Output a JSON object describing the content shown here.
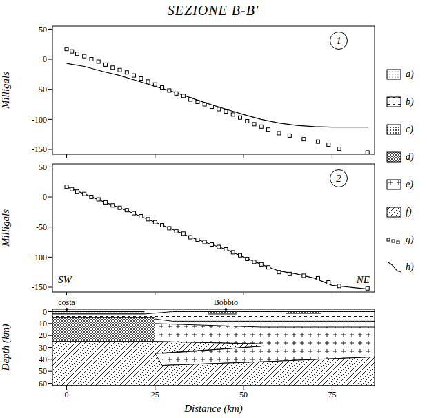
{
  "title": "SEZIONE B-B'",
  "chart_data": [
    {
      "type": "line",
      "label": "1",
      "xlim": [
        -4,
        87
      ],
      "xticks": [
        0,
        25,
        50,
        75
      ],
      "tick_labels": "y",
      "ylabel": "Milligals",
      "ylim": [
        -158,
        55
      ],
      "yticks": [
        50,
        0,
        -50,
        -100,
        -150
      ],
      "color": "#000000",
      "series": [
        {
          "name": "g)",
          "type": "scatter",
          "marker": "square",
          "color": "#000000",
          "x": [
            0,
            1.5,
            3,
            5,
            7,
            9,
            11,
            13,
            15,
            17,
            19,
            21,
            23,
            25,
            27,
            29,
            31,
            33,
            35,
            37,
            39,
            41,
            43,
            45,
            47,
            49,
            51,
            53,
            55,
            57,
            60,
            63,
            67,
            71,
            74,
            77,
            85
          ],
          "values": [
            17,
            13,
            9,
            5,
            0,
            -4,
            -9,
            -14,
            -18,
            -22,
            -27,
            -32,
            -37,
            -42,
            -47,
            -52,
            -57,
            -61,
            -67,
            -71,
            -75,
            -79,
            -83,
            -87,
            -92,
            -97,
            -103,
            -108,
            -112,
            -117,
            -123,
            -127,
            -133,
            -137,
            -142,
            -149,
            -155
          ]
        },
        {
          "name": "h)",
          "type": "line",
          "line_style": "solid",
          "color": "#000000",
          "x": [
            0,
            5,
            10,
            15,
            20,
            25,
            30,
            35,
            40,
            45,
            50,
            55,
            60,
            65,
            70,
            75,
            80,
            85
          ],
          "values": [
            -7,
            -12,
            -20,
            -27,
            -36,
            -45,
            -54,
            -64,
            -74,
            -83,
            -92,
            -100,
            -106,
            -110,
            -112,
            -113,
            -113,
            -113
          ]
        }
      ]
    },
    {
      "type": "line",
      "label": "2",
      "xlim": [
        -4,
        87
      ],
      "xticks": [
        0,
        25,
        50,
        75
      ],
      "tick_labels": "y",
      "ylabel": "Milligals",
      "ylim": [
        -158,
        55
      ],
      "yticks": [
        50,
        0,
        -50,
        -100,
        -150
      ],
      "color": "#000000",
      "annotations": [
        {
          "text": "SW"
        },
        {
          "text": "NE"
        }
      ],
      "series": [
        {
          "name": "g)",
          "type": "scatter",
          "marker": "square",
          "color": "#000000",
          "x": [
            0,
            1.5,
            3,
            5,
            7,
            9,
            11,
            13,
            15,
            17,
            19,
            21,
            23,
            25,
            27,
            29,
            31,
            33,
            35,
            37,
            39,
            41,
            43,
            45,
            47,
            49,
            51,
            53,
            55,
            57,
            60,
            63,
            67,
            71,
            74,
            77,
            85
          ],
          "values": [
            17,
            13,
            9,
            5,
            0,
            -4,
            -9,
            -14,
            -18,
            -22,
            -27,
            -32,
            -37,
            -42,
            -47,
            -52,
            -57,
            -61,
            -67,
            -71,
            -75,
            -79,
            -83,
            -87,
            -92,
            -97,
            -103,
            -108,
            -112,
            -117,
            -125,
            -128,
            -131,
            -135,
            -142,
            -148,
            -152
          ]
        },
        {
          "name": "h)",
          "type": "line",
          "line_style": "solid",
          "color": "#000000",
          "x": [
            0,
            5,
            10,
            15,
            20,
            25,
            30,
            35,
            40,
            45,
            50,
            55,
            60,
            65,
            70,
            75,
            80,
            85
          ],
          "values": [
            17,
            5,
            -7,
            -18,
            -30,
            -42,
            -54,
            -67,
            -77,
            -87,
            -100,
            -112,
            -123,
            -128,
            -135,
            -147,
            -150,
            -153
          ]
        }
      ]
    },
    {
      "type": "area",
      "xlabel": "Distance (km)",
      "ylabel": "Depth (km)",
      "xlim": [
        -4,
        87
      ],
      "xticks": [
        0,
        25,
        50,
        75
      ],
      "ylim": [
        -2,
        62
      ],
      "yticks": [
        0,
        10,
        20,
        30,
        40,
        50,
        60
      ],
      "color": "#000000",
      "annotations": [
        {
          "text": "costa",
          "x": 0
        },
        {
          "text": "Bobbio",
          "x": 45
        }
      ],
      "series": [
        {
          "name": "a)",
          "parts": [
            {
              "x": [
                -4,
                22
              ],
              "top": [
                0,
                0
              ],
              "bottom": [
                2,
                2
              ]
            }
          ]
        },
        {
          "name": "b)",
          "parts": [
            {
              "x": [
                -4,
                22,
                30,
                87
              ],
              "top": [
                2,
                2,
                0,
                0
              ],
              "bottom": [
                5,
                5,
                8,
                8
              ]
            }
          ]
        },
        {
          "name": "c)",
          "parts": [
            {
              "x": [
                40,
                48
              ],
              "top": [
                0,
                0
              ],
              "bottom": [
                2,
                2
              ]
            },
            {
              "x": [
                62,
                72
              ],
              "top": [
                0,
                0
              ],
              "bottom": [
                1.5,
                1.5
              ]
            }
          ]
        },
        {
          "name": "d)",
          "parts": [
            {
              "x": [
                -4,
                25
              ],
              "top": [
                5,
                5
              ],
              "bottom": [
                25,
                25
              ]
            }
          ]
        },
        {
          "name": "e)",
          "parts": [
            {
              "x": [
                25,
                55
              ],
              "top": [
                10,
                13
              ],
              "bottom": [
                25,
                27
              ]
            },
            {
              "x": [
                55,
                87
              ],
              "top": [
                13,
                13
              ],
              "bottom": [
                42,
                38
              ]
            },
            {
              "x": [
                27,
                55
              ],
              "top": [
                35,
                29
              ],
              "bottom": [
                45,
                42
              ]
            }
          ]
        },
        {
          "name": "f)",
          "parts": [
            {
              "x": [
                -4,
                25
              ],
              "top": [
                25,
                25
              ],
              "bottom": [
                62,
                62
              ]
            },
            {
              "x": [
                25,
                55
              ],
              "top": [
                25,
                27
              ],
              "bottom": [
                35,
                29
              ]
            },
            {
              "x": [
                25,
                27,
                55,
                87
              ],
              "top": [
                35,
                45,
                42,
                38
              ],
              "bottom": [
                62,
                62,
                62,
                62
              ]
            }
          ]
        }
      ]
    }
  ]
}
